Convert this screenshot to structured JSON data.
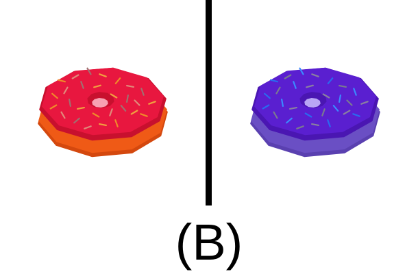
{
  "caption": "(B)",
  "panels": [
    {
      "name": "red-donut",
      "icing_color": "#e8173f",
      "icing_dark": "#c8102e",
      "base_color": "#ef5a16",
      "base_dark": "#d4480e",
      "hole_color": "#f7a1b2",
      "sprinkle_colors": [
        "#ef8a2a",
        "#e08a7a",
        "#a07070",
        "#f0a040"
      ]
    },
    {
      "name": "purple-donut",
      "icing_color": "#5a1fd0",
      "icing_dark": "#4a16b2",
      "base_color": "#6a4fc4",
      "base_dark": "#5a40b0",
      "hole_color": "#b9a6f5",
      "sprinkle_colors": [
        "#2a6af0",
        "#7a7a90",
        "#3a8aff",
        "#8a80a0"
      ]
    }
  ]
}
